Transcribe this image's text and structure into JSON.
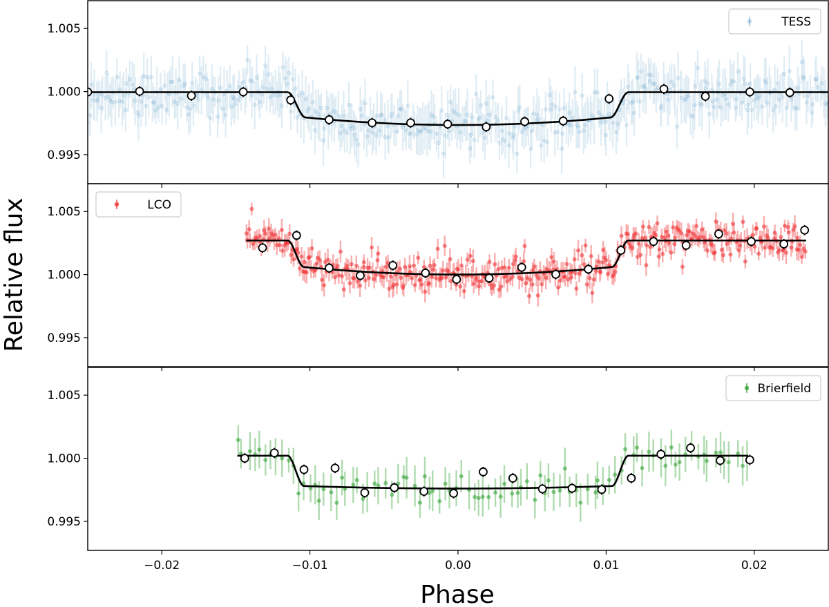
{
  "chart_data": {
    "type": "scatter",
    "xlabel": "Phase",
    "ylabel": "Relative flux",
    "xlim": [
      -0.025,
      0.025
    ],
    "ylim": [
      0.9927,
      1.0072
    ],
    "x_ticks": [
      -0.02,
      -0.01,
      0.0,
      0.01,
      0.02
    ],
    "x_tick_labels": [
      "−0.02",
      "−0.01",
      "0.00",
      "0.01",
      "0.02"
    ],
    "y_ticks": [
      0.995,
      1.0,
      1.005
    ],
    "y_tick_labels": [
      "0.995",
      "1.000",
      "1.005"
    ],
    "panels": [
      {
        "name": "TESS",
        "legend_label": "TESS",
        "legend_position": "top-right",
        "color": "#1f77b4",
        "raw_style": "faint",
        "raw_range": [
          -0.025,
          0.025
        ],
        "raw_step": 0.000115,
        "raw_scatter": 0.0016,
        "raw_err": 0.0016,
        "model": {
          "t1": -0.0115,
          "t2": -0.0103,
          "t3": 0.0103,
          "t4": 0.0115,
          "baseline": 0.99995,
          "depth": 0.0026,
          "curvature": 0.0006
        },
        "binned": {
          "x": [
            -0.025,
            -0.0215,
            -0.018,
            -0.0145,
            -0.0113,
            -0.0087,
            -0.0058,
            -0.0032,
            -0.0007,
            0.0019,
            0.0045,
            0.0071,
            0.0102,
            0.0139,
            0.0167,
            0.0197,
            0.0224
          ],
          "y": [
            0.99997,
            1.00002,
            0.99967,
            0.99997,
            0.99933,
            0.99777,
            0.99752,
            0.99752,
            0.99742,
            0.9972,
            0.99762,
            0.99767,
            0.99943,
            1.0002,
            0.99962,
            0.99997,
            0.99992
          ]
        }
      },
      {
        "name": "LCO",
        "legend_label": "LCO",
        "legend_position": "top-left",
        "color": "#ef2b2d",
        "raw_style": "points",
        "raw_range": [
          -0.0143,
          0.0235
        ],
        "raw_step": 9.5e-05,
        "raw_scatter": 0.0013,
        "raw_err": 0.0007,
        "model": {
          "t1": -0.0115,
          "t2": -0.0104,
          "t3": 0.0104,
          "t4": 0.0115,
          "baseline": 1.0027,
          "depth": 0.0027,
          "curvature": 0.0006
        },
        "binned": {
          "x": [
            -0.0132,
            -0.0109,
            -0.0087,
            -0.0066,
            -0.0044,
            -0.0022,
            -0.0001,
            0.0021,
            0.0043,
            0.0066,
            0.0088,
            0.011,
            0.0132,
            0.0154,
            0.0176,
            0.0198,
            0.022,
            0.0234
          ],
          "y": [
            1.00212,
            1.0031,
            1.00052,
            0.99992,
            1.00072,
            1.00012,
            0.99962,
            0.99972,
            1.00057,
            1.00002,
            1.00042,
            1.00192,
            1.00262,
            1.00232,
            1.00322,
            1.00262,
            1.00242,
            1.00352
          ]
        }
      },
      {
        "name": "Brierfield",
        "legend_label": "Brierfield",
        "legend_position": "top-right",
        "color": "#2ca02c",
        "raw_style": "points",
        "raw_range": [
          -0.0149,
          0.0196
        ],
        "raw_step": 0.00037,
        "raw_scatter": 0.0011,
        "raw_err": 0.0013,
        "model": {
          "t1": -0.0115,
          "t2": -0.0104,
          "t3": 0.0104,
          "t4": 0.0115,
          "baseline": 1.0002,
          "depth": 0.0026,
          "curvature": 0.0002
        },
        "binned": {
          "x": [
            -0.0144,
            -0.0124,
            -0.0104,
            -0.0083,
            -0.0063,
            -0.0043,
            -0.0023,
            -0.0003,
            0.0017,
            0.0037,
            0.0057,
            0.0077,
            0.0097,
            0.0117,
            0.0137,
            0.0157,
            0.0177,
            0.0197
          ],
          "y": [
            1.0,
            1.00042,
            0.9991,
            0.99922,
            0.99727,
            0.99767,
            0.99737,
            0.99722,
            0.99892,
            0.99842,
            0.99757,
            0.99762,
            0.99752,
            0.99842,
            1.00032,
            1.00082,
            0.99982,
            0.99987
          ]
        }
      }
    ]
  }
}
